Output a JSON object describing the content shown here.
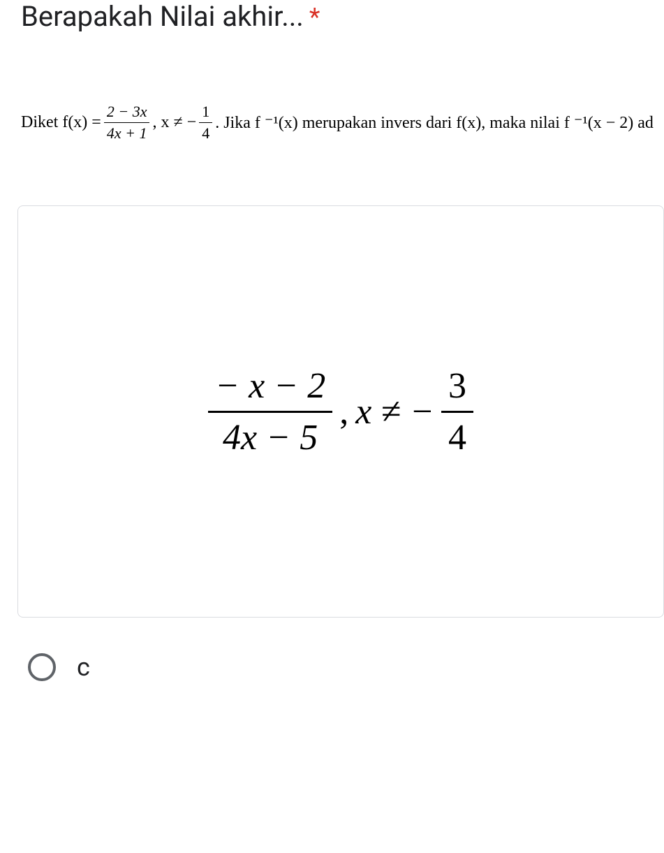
{
  "question": {
    "title": "Berapakah Nilai akhir...",
    "required_marker": "*"
  },
  "problem": {
    "prefix": "Diket f(x) = ",
    "frac1_num": "2 − 3x",
    "frac1_den": "4x + 1",
    "mid1": ", x ≠ − ",
    "frac2_num": "1",
    "frac2_den": "4",
    "suffix": ". Jika f ⁻¹(x) merupakan invers dari f(x), maka nilai f ⁻¹(x − 2) ad"
  },
  "answer_image": {
    "big_frac_num": "− x − 2",
    "big_frac_den": "4x − 5",
    "comma": ",",
    "neq_text": "x ≠ −",
    "small_frac_num": "3",
    "small_frac_den": "4"
  },
  "option": {
    "label": "c"
  },
  "colors": {
    "title_color": "#202124",
    "required_color": "#d93025",
    "text_color": "#000000",
    "border_color": "#dadce0",
    "radio_border": "#5f6368"
  }
}
